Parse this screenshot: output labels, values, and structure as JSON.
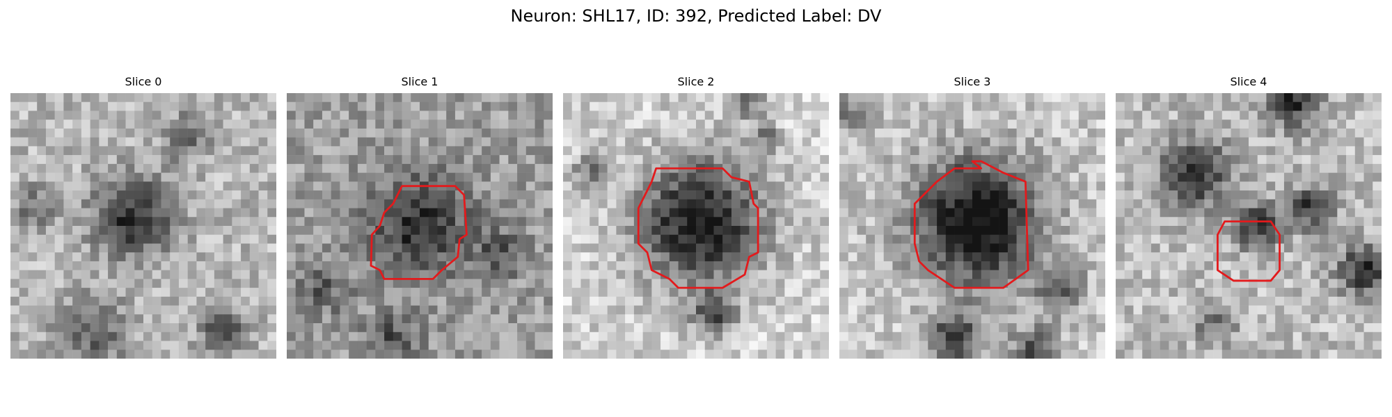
{
  "figure": {
    "title": "Neuron: SHL17, ID: 392, Predicted Label: DV"
  },
  "panels": [
    {
      "title": "Slice 0",
      "has_contour": false,
      "seed": 11
    },
    {
      "title": "Slice 1",
      "has_contour": true,
      "seed": 23
    },
    {
      "title": "Slice 2",
      "has_contour": true,
      "seed": 37
    },
    {
      "title": "Slice 3",
      "has_contour": true,
      "seed": 51
    },
    {
      "title": "Slice 4",
      "has_contour": true,
      "seed": 67
    }
  ],
  "colors": {
    "contour": "#e31a1c",
    "background": "#ffffff"
  }
}
